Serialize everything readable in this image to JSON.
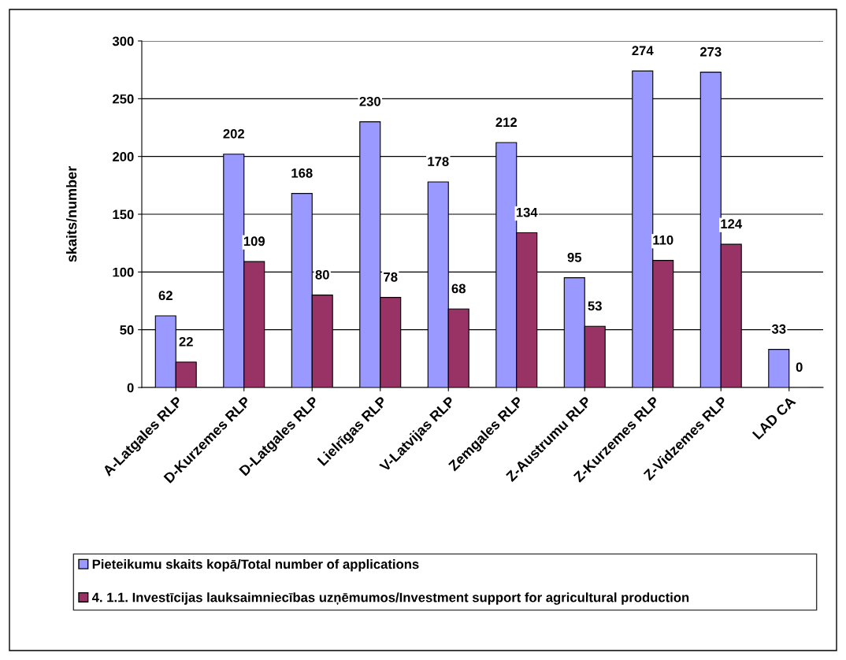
{
  "chart_data": {
    "type": "bar",
    "ylabel": "skaits/number",
    "categories": [
      "A-Latgales RLP",
      "D-Kurzemes RLP",
      "D-Latgales RLP",
      "Lielrīgas RLP",
      "V-Latvijas RLP",
      "Zemgales RLP",
      "Z-Austrumu RLP",
      "Z-Kurzemes RLP",
      "Z-Vidzemes RLP",
      "LAD CA"
    ],
    "series": [
      {
        "name": "Pieteikumu skaits kopā/Total number of applications",
        "color": "#9999ff",
        "values": [
          62,
          202,
          168,
          230,
          178,
          212,
          95,
          274,
          273,
          33
        ]
      },
      {
        "name": "4. 1.1. Investīcijas lauksaimniecības uzņēmumos/Investment support for agricultural production",
        "color": "#993366",
        "values": [
          22,
          109,
          80,
          78,
          68,
          134,
          53,
          110,
          124,
          0
        ]
      }
    ],
    "ylim": [
      0,
      300
    ],
    "yticks": [
      0,
      50,
      100,
      150,
      200,
      250,
      300
    ],
    "grid": "y",
    "data_labels": true,
    "legend": "bottom"
  }
}
